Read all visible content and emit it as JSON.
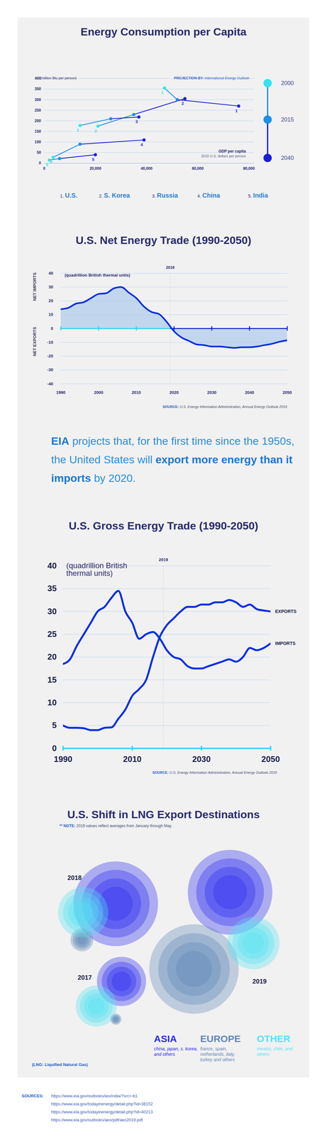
{
  "chart_data": [
    {
      "type": "scatter",
      "title": "Energy Consumption per Capita",
      "y_label": "(million Btu per person)",
      "projection_label": "PROJECTION BY:",
      "projection_source": "International Energy Outlook",
      "x_label": "GDP per capita",
      "x_sublabel": "2010 U.S. dollars per person",
      "years": [
        2000,
        2015,
        2040
      ],
      "year_colors": [
        "#33e3f2",
        "#1e8fe3",
        "#1b1fd9"
      ],
      "marker": "circle",
      "line_style": "solid",
      "grid": true,
      "xlim": [
        0,
        82000
      ],
      "xticks": [
        0,
        {
          "value": 20000,
          "label": "20,000"
        },
        {
          "value": 40000,
          "label": "40,000"
        },
        {
          "value": 60000,
          "label": "60,000"
        },
        {
          "value": 80000,
          "label": "80,000"
        }
      ],
      "ylim": [
        0,
        400
      ],
      "yticks": [
        0,
        50,
        100,
        150,
        200,
        250,
        300,
        350,
        400
      ],
      "series": [
        {
          "name": "U.S.",
          "number": "1",
          "key": "1.",
          "x": [
            47000,
            52000,
            76000
          ],
          "values": [
            355,
            300,
            270
          ]
        },
        {
          "name": "S. Korea",
          "number": "2",
          "key": "2.",
          "x": [
            21000,
            35000,
            55000
          ],
          "values": [
            175,
            230,
            305
          ]
        },
        {
          "name": "Russia",
          "number": "3",
          "key": "3.",
          "x": [
            14000,
            26000,
            37000
          ],
          "values": [
            178,
            210,
            218
          ]
        },
        {
          "name": "China",
          "number": "4",
          "key": "4.",
          "x": [
            3500,
            14000,
            39000
          ],
          "values": [
            28,
            90,
            110
          ]
        },
        {
          "name": "India",
          "number": "5",
          "key": "5.",
          "x": [
            2000,
            6000,
            20000
          ],
          "values": [
            15,
            22,
            40
          ]
        }
      ]
    },
    {
      "type": "area",
      "title": "U.S. Net Energy Trade (1990-2050)",
      "y_label": "(quadrillion British thermal units)",
      "side_labels": [
        "NET IMPORTS",
        "NET EXPORTS"
      ],
      "annotation": 2019,
      "source_label": "SOURCE:",
      "source": "U.S. Energy Information Administration, Annual Energy Outlook 2019",
      "color": "#0b2fe0",
      "grid": true,
      "x": [
        1990,
        1992,
        1994,
        1996,
        1998,
        2000,
        2002,
        2004,
        2006,
        2008,
        2010,
        2012,
        2014,
        2016,
        2018,
        2020,
        2022,
        2024,
        2026,
        2028,
        2030,
        2032,
        2034,
        2036,
        2038,
        2040,
        2042,
        2044,
        2046,
        2048,
        2050
      ],
      "values": [
        14,
        15,
        18,
        19,
        22,
        25,
        25.5,
        29,
        30,
        26,
        22,
        16,
        12,
        10.5,
        5,
        -2,
        -6.5,
        -9,
        -11.5,
        -12,
        -13,
        -13,
        -13.5,
        -14,
        -13.5,
        -13.5,
        -13,
        -12,
        -11,
        -9.5,
        -8.5
      ],
      "xlim": [
        1990,
        2050
      ],
      "xticks": [
        1990,
        2000,
        2010,
        2020,
        2030,
        2040,
        2050
      ],
      "ylim": [
        -40,
        40
      ],
      "yticks": [
        -40,
        -30,
        -20,
        -10,
        0,
        10,
        20,
        30,
        40
      ]
    },
    {
      "type": "line",
      "title": "U.S. Gross Energy Trade (1990-2050)",
      "y_label": "(quadrillion British thermal units)",
      "annotation": 2019,
      "source_label": "SOURCE:",
      "source": "U.S. Energy Information Administration, Annual Energy Outlook 2019",
      "grid": true,
      "x": [
        1990,
        1992,
        1994,
        1996,
        1998,
        2000,
        2002,
        2004,
        2006,
        2008,
        2010,
        2012,
        2014,
        2016,
        2018,
        2020,
        2022,
        2024,
        2026,
        2028,
        2030,
        2032,
        2034,
        2036,
        2038,
        2040,
        2042,
        2044,
        2046,
        2048,
        2050
      ],
      "series": [
        {
          "name": "EXPORTS",
          "color": "#0a2fe6",
          "values": [
            5,
            4.5,
            4.5,
            4.4,
            4,
            4,
            4.5,
            4.6,
            6.5,
            8.5,
            11.5,
            13,
            15,
            20,
            24.5,
            27,
            28.5,
            30,
            31,
            31,
            31.5,
            31.5,
            32,
            32,
            32.5,
            32,
            31,
            31.5,
            30.5,
            30.2,
            30
          ]
        },
        {
          "name": "IMPORTS",
          "color": "#0a2fe6",
          "values": [
            18.5,
            19.5,
            22.5,
            25,
            27.5,
            30,
            31,
            33,
            34.5,
            30,
            27.5,
            24,
            25,
            25.5,
            24,
            21.5,
            20,
            19.5,
            18,
            17.5,
            17.5,
            18,
            18.5,
            19,
            19.5,
            19,
            20,
            22,
            21.5,
            22,
            23
          ]
        }
      ],
      "xlim": [
        1990,
        2050
      ],
      "xticks": [
        1990,
        2010,
        2030,
        2050
      ],
      "ylim": [
        0,
        40
      ],
      "yticks": [
        0,
        5,
        10,
        15,
        20,
        25,
        30,
        35,
        40
      ]
    },
    {
      "type": "bubble",
      "title": "U.S. Shift in LNG Export Destinations",
      "note_label": "** NOTE:",
      "note": "2019 values reflect averages from January through May.",
      "categories": [
        "2017",
        "2018",
        "2019"
      ],
      "tick_labels": false,
      "series": [
        {
          "name": "ASIA",
          "description": "china, japan, s. korea, and others",
          "color": "#2b2bf0",
          "values": [
            1.15,
            3.4,
            3.4
          ]
        },
        {
          "name": "EUROPE",
          "description": "france, spain, netherlands, italy, turkey and others",
          "color": "#5f86b8",
          "values": [
            0.06,
            0.25,
            3.8
          ]
        },
        {
          "name": "OTHER",
          "description": "mexico, chile, and others",
          "color": "#55e2f2",
          "values": [
            0.8,
            1.2,
            1.3
          ]
        }
      ],
      "footnote": "(LNG: Liquified Natural Gas)"
    }
  ],
  "page": {
    "statement": [
      {
        "text": "EIA",
        "bold": true
      },
      {
        "text": " projects that, for the first time since the 1950s, the United States will ",
        "bold": false
      },
      {
        "text": "export more energy than it imports",
        "bold": true
      },
      {
        "text": " by 2020.",
        "bold": false
      }
    ],
    "sources_label": "SOURCES:",
    "sources": [
      "https://www.eia.gov/outlooks/ieo/india/?src=-b1",
      "https://www.eia.gov/todayinenergy/detail.php?id=38152",
      "https://www.eia.gov/todayinenergy/detail.php?id=40213",
      "https://www.eia.gov/outlooks/aeo/pdf/aeo2019.pdf"
    ]
  }
}
